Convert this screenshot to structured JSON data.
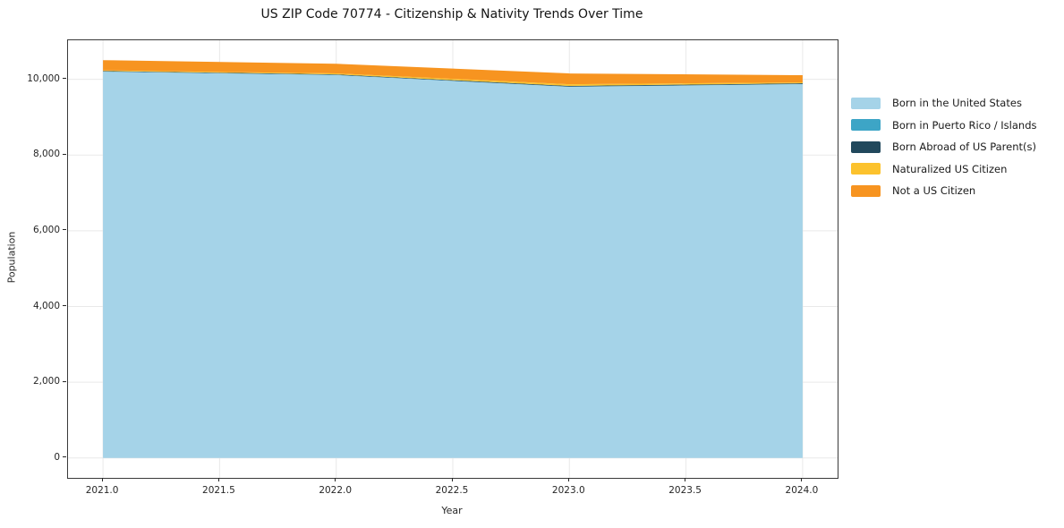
{
  "chart_data": {
    "type": "area",
    "stacked": true,
    "title": "US ZIP Code 70774 - Citizenship & Nativity Trends Over Time",
    "xlabel": "Year",
    "ylabel": "Population",
    "x": [
      2021,
      2022,
      2023,
      2024
    ],
    "series": [
      {
        "name": "Born in the United States",
        "color": "#a5d3e8",
        "values": [
          10200,
          10110,
          9800,
          9870
        ]
      },
      {
        "name": "Born in Puerto Rico / Islands",
        "color": "#3da5c6",
        "values": [
          6,
          6,
          6,
          6
        ]
      },
      {
        "name": "Born Abroad of US Parent(s)",
        "color": "#21485c",
        "values": [
          14,
          14,
          18,
          20
        ]
      },
      {
        "name": "Naturalized US Citizen",
        "color": "#fcc22d",
        "values": [
          15,
          25,
          45,
          22
        ]
      },
      {
        "name": "Not a US Citizen",
        "color": "#f79420",
        "values": [
          270,
          255,
          285,
          190
        ]
      }
    ],
    "xlim": [
      2020.85,
      2024.15
    ],
    "ylim": [
      -525,
      11030
    ],
    "xtick_values": [
      2021.0,
      2021.5,
      2022.0,
      2022.5,
      2023.0,
      2023.5,
      2024.0
    ],
    "xtick_labels": [
      "2021.0",
      "2021.5",
      "2022.0",
      "2022.5",
      "2023.0",
      "2023.5",
      "2024.0"
    ],
    "ytick_values": [
      0,
      2000,
      4000,
      6000,
      8000,
      10000
    ],
    "ytick_labels": [
      "0",
      "2,000",
      "4,000",
      "6,000",
      "8,000",
      "10,000"
    ],
    "grid": true,
    "grid_color": "#e9e9e9",
    "legend_position": "right"
  }
}
